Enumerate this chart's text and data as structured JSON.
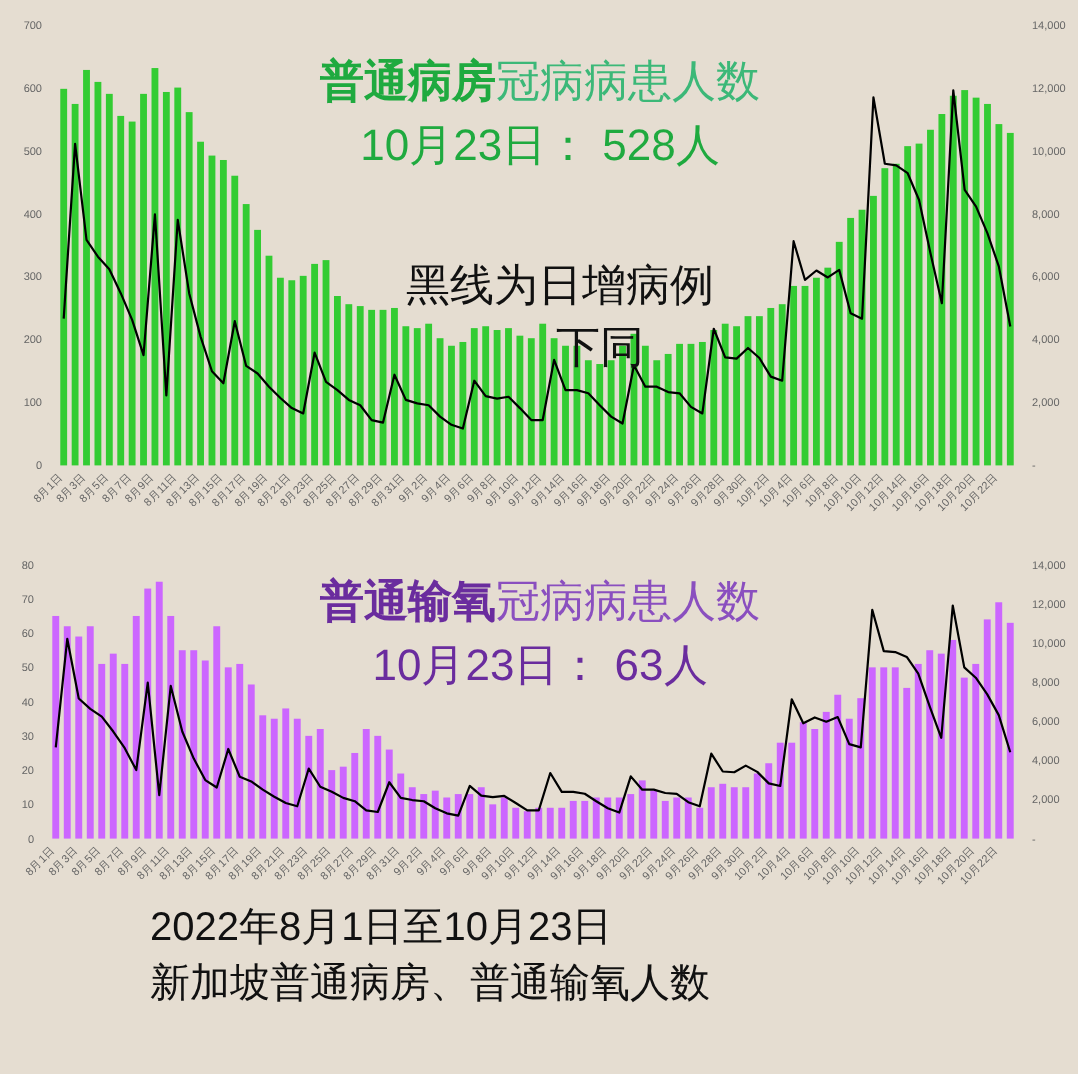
{
  "chart_data": [
    {
      "type": "bar",
      "title": "普通病房冠病病患人数",
      "subtitle": "10月23日： 528人",
      "annotations": [
        "黑线为日增病例",
        "下同"
      ],
      "categories": [
        "8月1日",
        null,
        "8月3日",
        null,
        "8月5日",
        null,
        "8月7日",
        null,
        "8月9日",
        null,
        "8月11日",
        null,
        "8月13日",
        null,
        "8月15日",
        null,
        "8月17日",
        null,
        "8月19日",
        null,
        "8月21日",
        null,
        "8月23日",
        null,
        "8月25日",
        null,
        "8月27日",
        null,
        "8月29日",
        null,
        "8月31日",
        null,
        "9月2日",
        null,
        "9月4日",
        null,
        "9月6日",
        null,
        "9月8日",
        null,
        "9月10日",
        null,
        "9月12日",
        null,
        "9月14日",
        null,
        "9月16日",
        null,
        "9月18日",
        null,
        "9月20日",
        null,
        "9月22日",
        null,
        "9月24日",
        null,
        "9月26日",
        null,
        "9月28日",
        null,
        "9月30日",
        null,
        "10月2日",
        null,
        "10月4日",
        null,
        "10月6日",
        null,
        "10月8日",
        null,
        "10月10日",
        null,
        "10月12日",
        null,
        "10月14日",
        null,
        "10月16日",
        null,
        "10月18日",
        null,
        "10月20日",
        null,
        "10月22日",
        null
      ],
      "series": [
        {
          "color": "#33cc33",
          "values": [
            598,
            574,
            628,
            609,
            590,
            555,
            546,
            590,
            631,
            593,
            600,
            561,
            514,
            492,
            485,
            460,
            415,
            374,
            333,
            298,
            294,
            301,
            320,
            326,
            269,
            256,
            253,
            247,
            247,
            250,
            221,
            218,
            225,
            202,
            190,
            196,
            218,
            221,
            215,
            218,
            206,
            202,
            225,
            202,
            190,
            190,
            167,
            161,
            167,
            190,
            209,
            190,
            167,
            177,
            193,
            193,
            196,
            215,
            225,
            221,
            237,
            237,
            250,
            256,
            285,
            285,
            298,
            314,
            355,
            393,
            406,
            428,
            472,
            479,
            507,
            511,
            533,
            558,
            587,
            596,
            584,
            574,
            542,
            528
          ]
        },
        {
          "type": "line",
          "axis": "y2",
          "color": "#000000",
          "values": [
            4660,
            10210,
            7160,
            6630,
            6230,
            5470,
            4620,
            3500,
            7970,
            2220,
            7800,
            5470,
            4090,
            2990,
            2610,
            4580,
            3160,
            2920,
            2500,
            2140,
            1820,
            1650,
            3580,
            2650,
            2390,
            2080,
            1910,
            1440,
            1360,
            2880,
            2080,
            1970,
            1910,
            1550,
            1290,
            1170,
            2690,
            2200,
            2120,
            2180,
            1820,
            1440,
            1440,
            3350,
            2390,
            2390,
            2290,
            1910,
            1550,
            1330,
            3180,
            2500,
            2500,
            2330,
            2290,
            1860,
            1650,
            4340,
            3430,
            3390,
            3730,
            3410,
            2820,
            2690,
            7120,
            5890,
            6190,
            5970,
            6210,
            4830,
            4660,
            11690,
            9580,
            9530,
            9280,
            8430,
            6740,
            5150,
            11910,
            8750,
            8220,
            7370,
            6310,
            4410
          ]
        }
      ],
      "ylim": [
        0,
        700
      ],
      "yticks": [
        0,
        100,
        200,
        300,
        400,
        500,
        600,
        700
      ],
      "y2lim": [
        0,
        14000
      ],
      "y2ticks": [
        {
          "value": 0,
          "label": "-"
        },
        {
          "value": 2000,
          "label": "2,000"
        },
        {
          "value": 4000,
          "label": "4,000"
        },
        {
          "value": 6000,
          "label": "6,000"
        },
        {
          "value": 8000,
          "label": "8,000"
        },
        {
          "value": 10000,
          "label": "10,000"
        },
        {
          "value": 12000,
          "label": "12,000"
        },
        {
          "value": 14000,
          "label": "14,000"
        }
      ],
      "grid": false
    },
    {
      "type": "bar",
      "title": "普通输氧冠病病患人数",
      "subtitle": "10月23日： 63人",
      "annotations": [
        "2022年8月1日至10月23日",
        "新加坡普通病房、普通输氧人数"
      ],
      "categories": [
        "8月1日",
        null,
        "8月3日",
        null,
        "8月5日",
        null,
        "8月7日",
        null,
        "8月9日",
        null,
        "8月11日",
        null,
        "8月13日",
        null,
        "8月15日",
        null,
        "8月17日",
        null,
        "8月19日",
        null,
        "8月21日",
        null,
        "8月23日",
        null,
        "8月25日",
        null,
        "8月27日",
        null,
        "8月29日",
        null,
        "8月31日",
        null,
        "9月2日",
        null,
        "9月4日",
        null,
        "9月6日",
        null,
        "9月8日",
        null,
        "9月10日",
        null,
        "9月12日",
        null,
        "9月14日",
        null,
        "9月16日",
        null,
        "9月18日",
        null,
        "9月20日",
        null,
        "9月22日",
        null,
        "9月24日",
        null,
        "9月26日",
        null,
        "9月28日",
        null,
        "9月30日",
        null,
        "10月2日",
        null,
        "10月4日",
        null,
        "10月6日",
        null,
        "10月8日",
        null,
        "10月10日",
        null,
        "10月12日",
        null,
        "10月14日",
        null,
        "10月16日",
        null,
        "10月18日",
        null,
        "10月20日",
        null,
        "10月22日",
        null
      ],
      "series": [
        {
          "color": "#cc66ff",
          "values": [
            65,
            62,
            59,
            62,
            51,
            54,
            51,
            65,
            73,
            75,
            65,
            55,
            55,
            52,
            62,
            50,
            51,
            45,
            36,
            35,
            38,
            35,
            30,
            32,
            20,
            21,
            25,
            32,
            30,
            26,
            19,
            15,
            13,
            14,
            12,
            13,
            13,
            15,
            10,
            12,
            9,
            8,
            9,
            9,
            9,
            11,
            11,
            12,
            12,
            12,
            13,
            17,
            14,
            11,
            12,
            12,
            9,
            15,
            16,
            15,
            15,
            19,
            22,
            28,
            28,
            34,
            32,
            37,
            42,
            35,
            41,
            50,
            50,
            50,
            44,
            51,
            55,
            54,
            58,
            47,
            51,
            64,
            69,
            63
          ]
        },
        {
          "type": "line",
          "axis": "y2",
          "color": "#000000",
          "values": [
            4660,
            10210,
            7160,
            6630,
            6230,
            5470,
            4620,
            3500,
            7970,
            2220,
            7800,
            5470,
            4090,
            2990,
            2610,
            4580,
            3160,
            2920,
            2500,
            2140,
            1820,
            1650,
            3580,
            2650,
            2390,
            2080,
            1910,
            1440,
            1360,
            2880,
            2080,
            1970,
            1910,
            1550,
            1290,
            1170,
            2690,
            2200,
            2120,
            2180,
            1820,
            1440,
            1440,
            3350,
            2390,
            2390,
            2290,
            1910,
            1550,
            1330,
            3180,
            2500,
            2500,
            2330,
            2290,
            1860,
            1650,
            4340,
            3430,
            3390,
            3730,
            3410,
            2820,
            2690,
            7120,
            5890,
            6190,
            5970,
            6210,
            4830,
            4660,
            11690,
            9580,
            9530,
            9280,
            8430,
            6740,
            5150,
            11910,
            8750,
            8220,
            7370,
            6310,
            4410
          ]
        }
      ],
      "ylim": [
        0,
        80
      ],
      "yticks": [
        0,
        10,
        20,
        30,
        40,
        50,
        60,
        70,
        80
      ],
      "y2lim": [
        0,
        14000
      ],
      "y2ticks": [
        {
          "value": 0,
          "label": "-"
        },
        {
          "value": 2000,
          "label": "2,000"
        },
        {
          "value": 4000,
          "label": "4,000"
        },
        {
          "value": 6000,
          "label": "6,000"
        },
        {
          "value": 8000,
          "label": "8,000"
        },
        {
          "value": 10000,
          "label": "10,000"
        },
        {
          "value": 12000,
          "label": "12,000"
        },
        {
          "value": 14000,
          "label": "14,000"
        }
      ],
      "grid": false
    }
  ]
}
